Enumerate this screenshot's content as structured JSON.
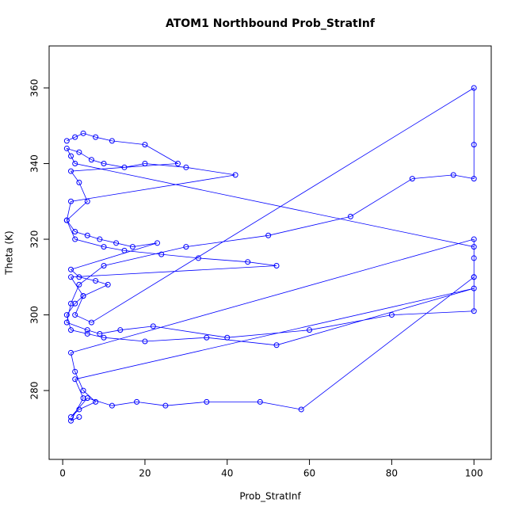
{
  "chart_data": {
    "type": "line",
    "title": "ATOM1 Northbound Prob_StratInf",
    "x_label": "Prob_StratInf",
    "y_label": "Theta (K)",
    "color": "#0000ff",
    "markers": true,
    "grid": false,
    "xlim": [
      -3.3,
      104.2
    ],
    "ylim": [
      261.8,
      371.1
    ],
    "xticks": [
      0,
      20,
      40,
      60,
      80,
      100
    ],
    "yticks": [
      280,
      300,
      320,
      340,
      360
    ],
    "x": [
      1,
      3,
      5,
      8,
      12,
      20,
      28,
      2,
      4,
      6,
      1,
      3,
      10,
      15,
      24,
      33,
      45,
      52,
      2,
      5,
      3,
      7,
      100,
      100,
      100,
      95,
      85,
      70,
      50,
      30,
      10,
      4,
      2,
      1,
      6,
      9,
      14,
      22,
      40,
      60,
      80,
      100,
      100,
      100,
      100,
      2,
      3,
      5,
      8,
      4,
      2,
      6,
      12,
      18,
      25,
      35,
      48,
      58,
      100,
      100,
      3,
      2,
      1,
      4,
      7,
      10,
      15,
      20,
      30,
      42,
      2,
      1,
      3,
      6,
      9,
      13,
      17,
      23,
      2,
      4,
      8,
      11,
      5,
      3,
      1,
      2,
      6,
      10,
      20,
      35,
      52,
      100,
      3,
      5,
      2,
      4
    ],
    "y": [
      346,
      347,
      348,
      347,
      346,
      345,
      340,
      338,
      335,
      330,
      325,
      320,
      318,
      317,
      316,
      315,
      314,
      313,
      310,
      305,
      300,
      298,
      360,
      345,
      336,
      337,
      336,
      326,
      321,
      318,
      313,
      308,
      303,
      298,
      296,
      295,
      296,
      297,
      294,
      296,
      300,
      301,
      310,
      315,
      320,
      290,
      285,
      280,
      277,
      275,
      273,
      278,
      276,
      277,
      276,
      277,
      277,
      275,
      310,
      318,
      340,
      342,
      344,
      343,
      341,
      340,
      339,
      340,
      339,
      337,
      330,
      325,
      322,
      321,
      320,
      319,
      318,
      319,
      312,
      310,
      309,
      308,
      305,
      303,
      300,
      296,
      295,
      294,
      293,
      294,
      292,
      307,
      283,
      278,
      272,
      273
    ],
    "series_name": null
  }
}
